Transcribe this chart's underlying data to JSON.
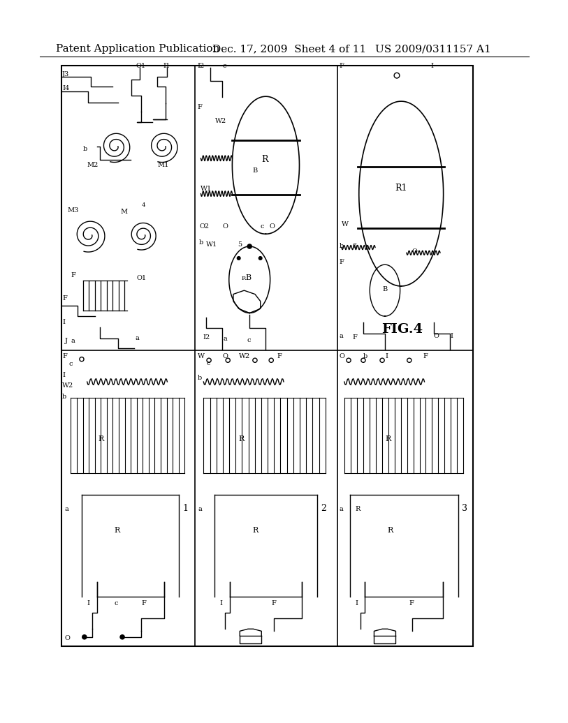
{
  "header_left": "Patent Application Publication",
  "header_mid": "Dec. 17, 2009  Sheet 4 of 11",
  "header_right": "US 2009/0311157 A1",
  "fig_label": "FIG.4",
  "bg_color": "#ffffff",
  "line_color": "#000000",
  "header_fontsize": 11,
  "fig_label_fontsize": 14
}
